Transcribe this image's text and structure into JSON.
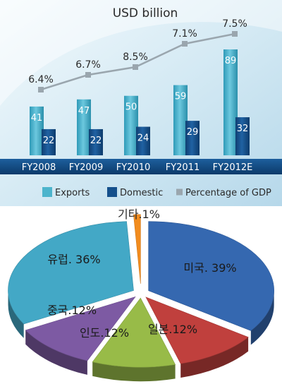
{
  "chart_data": [
    {
      "type": "bar",
      "title": "USD billion",
      "categories": [
        "FY2008",
        "FY2009",
        "FY2010",
        "FY2011",
        "FY2012E"
      ],
      "series": [
        {
          "name": "Exports",
          "values": [
            41,
            47,
            50,
            59,
            89
          ]
        },
        {
          "name": "Domestic",
          "values": [
            22,
            22,
            24,
            29,
            32
          ]
        }
      ],
      "line_series": {
        "name": "Percentage of GDP",
        "values": [
          6.4,
          6.7,
          8.5,
          7.1,
          7.5
        ],
        "labels": [
          "6.4%",
          "6.7%",
          "8.5%",
          "7.1%",
          "7.5%"
        ]
      },
      "legend": "bottom",
      "grid": false,
      "colors": {
        "exports": "#4cb4cc",
        "domestic": "#15508c",
        "gdp": "#9aa6ae"
      }
    },
    {
      "type": "pie",
      "slices": [
        {
          "label": "미국",
          "value": 39,
          "text": "미국. 39%",
          "color": "#3568b0"
        },
        {
          "label": "일본",
          "value": 12,
          "text": "일본.12%",
          "color": "#c0403d"
        },
        {
          "label": "인도",
          "value": 12,
          "text": "인도.12%",
          "color": "#98bb48"
        },
        {
          "label": "중국",
          "value": 12,
          "text": "중국.12%",
          "color": "#7d5aa3"
        },
        {
          "label": "유럽",
          "value": 36,
          "text": "유럽. 36%",
          "color": "#43a8c6"
        },
        {
          "label": "기타",
          "value": 1,
          "text": "기타.1%",
          "color": "#f28c1e"
        }
      ]
    }
  ]
}
